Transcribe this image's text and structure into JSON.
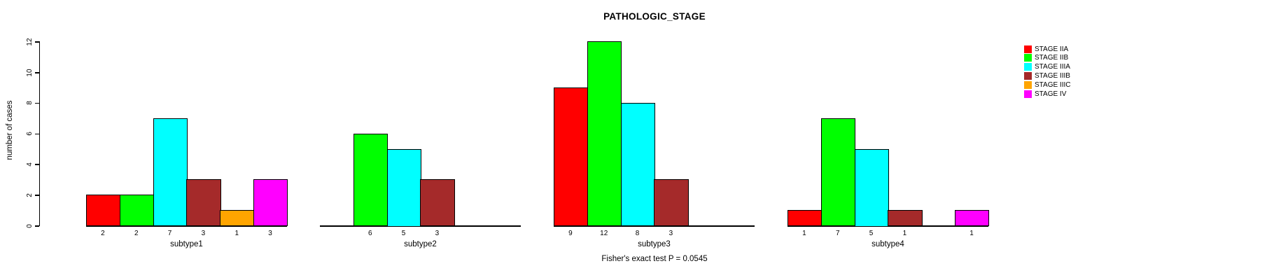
{
  "title": "PATHOLOGIC_STAGE",
  "footer": "Fisher's exact test P = 0.0545",
  "chart_data": {
    "type": "bar",
    "title": "PATHOLOGIC_STAGE",
    "xlabel": "",
    "ylabel": "number of cases",
    "ylim": [
      0,
      12
    ],
    "yticks": [
      0,
      2,
      4,
      6,
      8,
      10,
      12
    ],
    "grid": false,
    "legend_position": "top-right",
    "annotation": "Fisher's exact test P = 0.0545",
    "categories": [
      "subtype1",
      "subtype2",
      "subtype3",
      "subtype4"
    ],
    "series": [
      {
        "name": "STAGE IIA",
        "color": "#FF0000",
        "values": [
          2,
          0,
          9,
          1
        ]
      },
      {
        "name": "STAGE IIB",
        "color": "#00FF00",
        "values": [
          2,
          6,
          12,
          7
        ]
      },
      {
        "name": "STAGE IIIA",
        "color": "#00FFFF",
        "values": [
          7,
          5,
          8,
          5
        ]
      },
      {
        "name": "STAGE IIIB",
        "color": "#A52A2A",
        "values": [
          3,
          3,
          3,
          1
        ]
      },
      {
        "name": "STAGE IIIC",
        "color": "#FFA500",
        "values": [
          1,
          0,
          0,
          0
        ]
      },
      {
        "name": "STAGE IV",
        "color": "#FF00FF",
        "values": [
          3,
          0,
          0,
          1
        ]
      }
    ],
    "bar_value_labels_shown": true,
    "axis_color": "#000000",
    "background_color": "#FFFFFF"
  }
}
